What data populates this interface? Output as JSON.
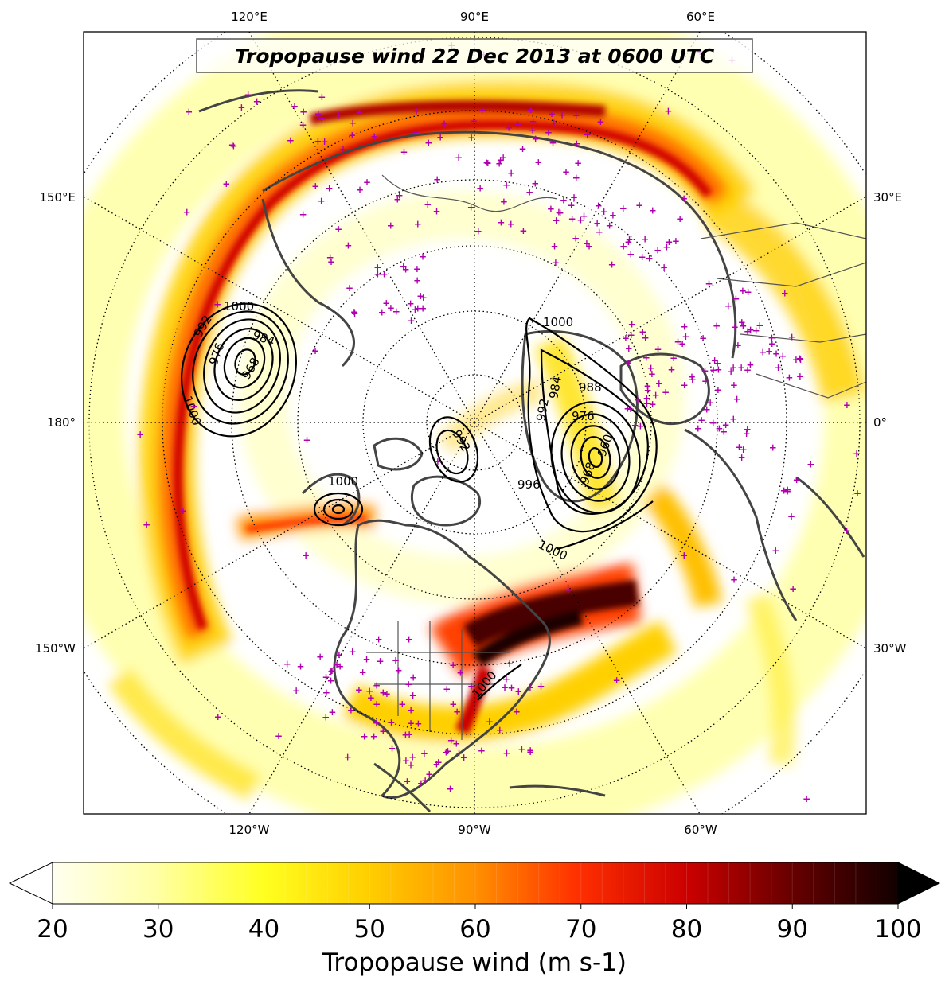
{
  "title": "Tropopause wind 22 Dec 2013 at 0600 UTC",
  "colorbar": {
    "label": "Tropopause wind (m s-1)",
    "min": 20,
    "max": 100,
    "ticks": [
      "20",
      "30",
      "40",
      "50",
      "60",
      "70",
      "80",
      "90",
      "100"
    ],
    "extend": "both"
  },
  "longitude_labels": {
    "top": [
      "120°E",
      "90°E",
      "60°E"
    ],
    "bottom": [
      "120°W",
      "90°W",
      "60°W"
    ],
    "left": [
      "150°E",
      "180°",
      "150°W"
    ],
    "right": [
      "30°E",
      "0°",
      "30°W"
    ]
  },
  "contour_labels": [
    "1000",
    "992",
    "984",
    "976",
    "968",
    "1000",
    "992",
    "984",
    "976",
    "968",
    "960",
    "988",
    "996",
    "1000",
    "992",
    "1000",
    "1000",
    "1000"
  ],
  "colors": {
    "wind_low": "#ffffe0",
    "wind_mid": "#ffd700",
    "wind_high": "#ff0000",
    "wind_max": "#1a0000",
    "coastline": "#444444",
    "station_marker": "#b000b0",
    "contour": "#000000"
  },
  "projection": "north-polar-stereographic",
  "marker_symbol": "+"
}
